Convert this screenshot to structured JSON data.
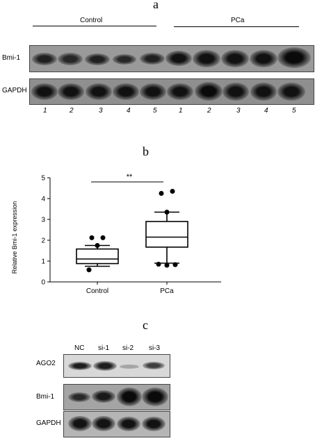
{
  "figure": {
    "panel_a": {
      "letter": "a",
      "groups": [
        "Control",
        "PCa"
      ],
      "row_labels": [
        "Bmi-1",
        "GAPDH"
      ],
      "lane_numbers": [
        "1",
        "2",
        "3",
        "4",
        "5",
        "1",
        "2",
        "3",
        "4",
        "5"
      ]
    },
    "panel_b": {
      "letter": "b",
      "significance": "**"
    },
    "panel_c": {
      "letter": "c",
      "lanes": [
        "NC",
        "si-1",
        "si-2",
        "si-3"
      ],
      "row_labels": [
        "AGO2",
        "Bmi-1",
        "GAPDH"
      ]
    }
  },
  "chart_data": {
    "type": "box",
    "title": "",
    "xlabel": "",
    "ylabel": "Relative Bmi-1 expression",
    "ylim": [
      0,
      5
    ],
    "yticks": [
      0,
      1,
      2,
      3,
      4,
      5
    ],
    "categories": [
      "Control",
      "PCa"
    ],
    "boxes": [
      {
        "name": "Control",
        "whisker_low": 0.75,
        "q1": 0.88,
        "median": 1.1,
        "q3": 1.58,
        "whisker_high": 1.75,
        "outliers": [
          2.12,
          2.12,
          1.75,
          0.58
        ]
      },
      {
        "name": "PCa",
        "whisker_low": 0.9,
        "q1": 1.67,
        "median": 2.15,
        "q3": 2.9,
        "whisker_high": 3.35,
        "outliers": [
          4.25,
          4.35,
          3.35,
          0.85,
          0.8,
          0.83
        ]
      }
    ],
    "colors": {
      "line": "#000000",
      "dot": "#000000"
    }
  }
}
